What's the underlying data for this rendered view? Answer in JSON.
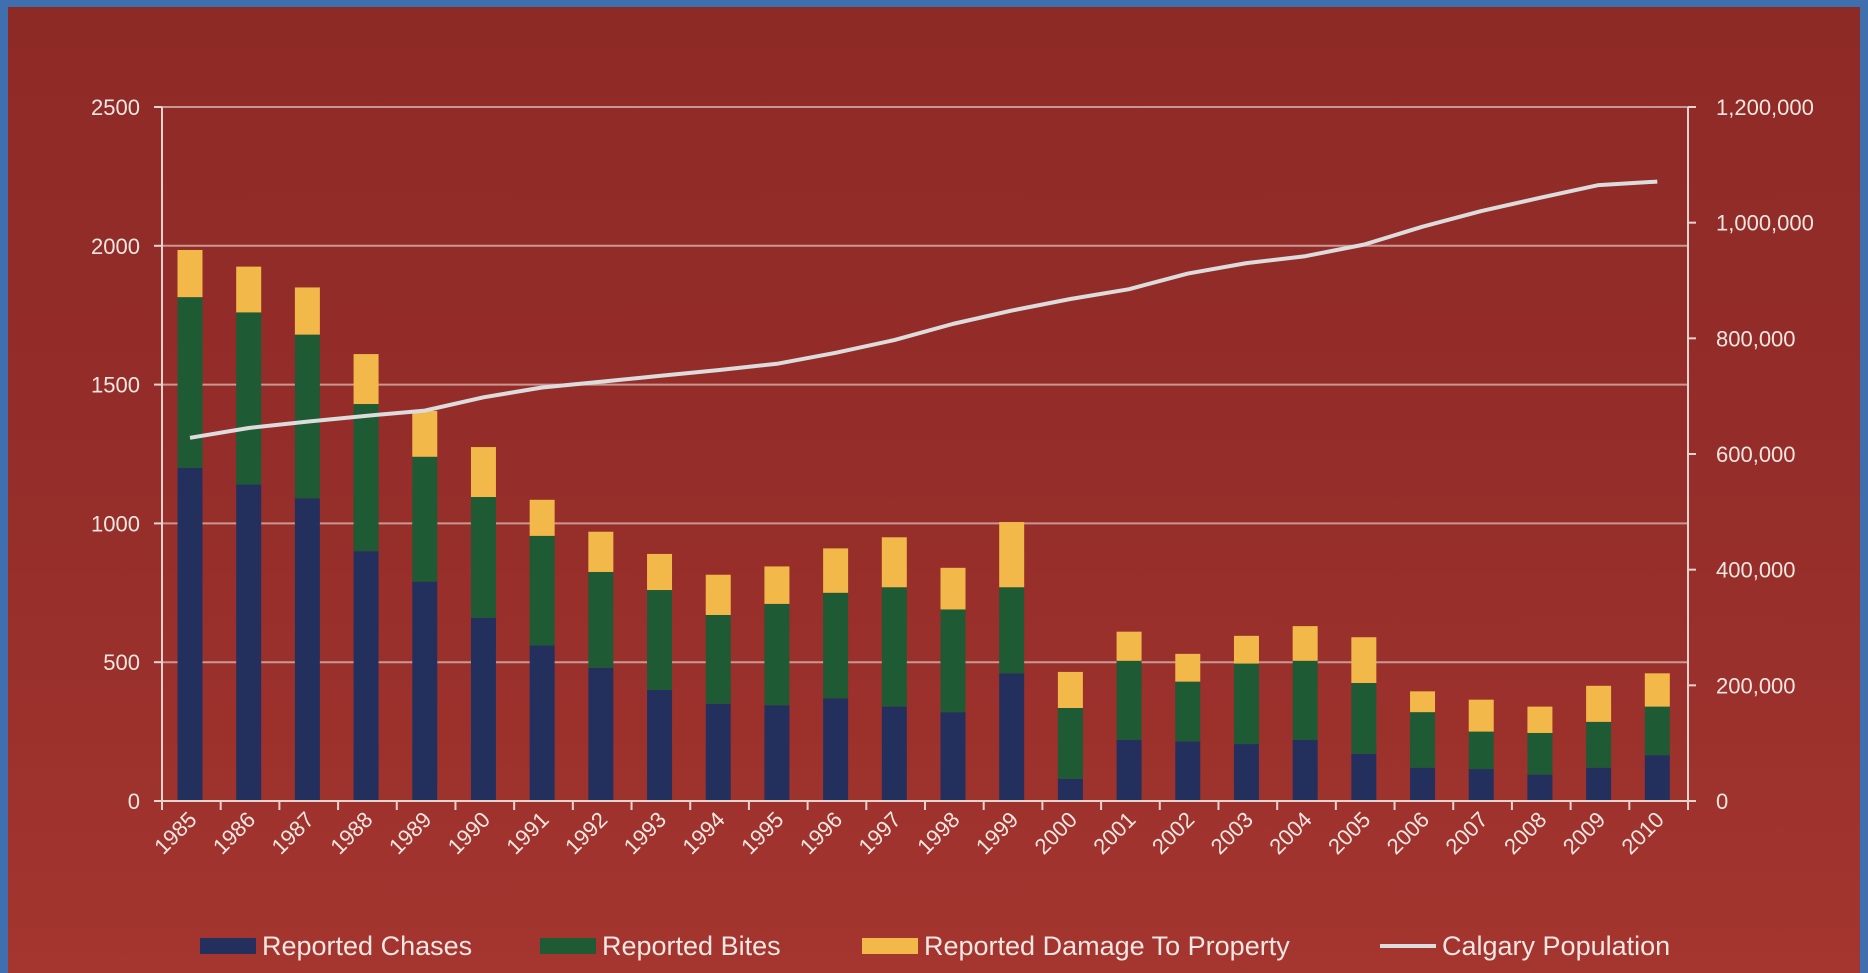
{
  "chart_data": {
    "type": "bar",
    "stacked": true,
    "categories": [
      "1985",
      "1986",
      "1987",
      "1988",
      "1989",
      "1990",
      "1991",
      "1992",
      "1993",
      "1994",
      "1995",
      "1996",
      "1997",
      "1998",
      "1999",
      "2000",
      "2001",
      "2002",
      "2003",
      "2004",
      "2005",
      "2006",
      "2007",
      "2008",
      "2009",
      "2010"
    ],
    "series": [
      {
        "name": "Reported Chases",
        "color": "#23305e",
        "axis": "left",
        "values": [
          1200,
          1140,
          1090,
          900,
          790,
          660,
          560,
          480,
          400,
          350,
          345,
          370,
          340,
          320,
          460,
          80,
          220,
          215,
          205,
          220,
          170,
          120,
          115,
          95,
          120,
          165
        ]
      },
      {
        "name": "Reported Bites",
        "color": "#1e5a34",
        "axis": "left",
        "values": [
          615,
          620,
          590,
          530,
          450,
          435,
          395,
          345,
          360,
          320,
          365,
          380,
          430,
          370,
          310,
          255,
          285,
          215,
          290,
          285,
          255,
          200,
          135,
          150,
          165,
          175
        ]
      },
      {
        "name": "Reported Damage To Property",
        "color": "#f2b84a",
        "axis": "left",
        "values": [
          170,
          165,
          170,
          180,
          165,
          180,
          130,
          145,
          130,
          145,
          135,
          160,
          180,
          150,
          235,
          130,
          105,
          100,
          100,
          125,
          165,
          75,
          115,
          95,
          130,
          120
        ]
      },
      {
        "name": "Calgary Population",
        "type": "line",
        "color": "#dcdcdc",
        "axis": "right",
        "values": [
          628000,
          645000,
          656000,
          666000,
          675000,
          698000,
          715000,
          725000,
          735000,
          745000,
          756000,
          775000,
          797000,
          825000,
          848000,
          868000,
          885000,
          912000,
          930000,
          942000,
          962000,
          993000,
          1020000,
          1043000,
          1065000,
          1071000
        ]
      }
    ],
    "ylim": [
      0,
      2500
    ],
    "yticks": [
      "2500",
      "2000",
      "1500",
      "1000",
      "500",
      "0"
    ],
    "y2lim": [
      0,
      1200000
    ],
    "y2ticks": [
      "1,200,000",
      "1,000,000",
      "800,000",
      "600,000",
      "400,000",
      "200,000",
      "0"
    ],
    "grid": true,
    "legend": "bottom"
  }
}
